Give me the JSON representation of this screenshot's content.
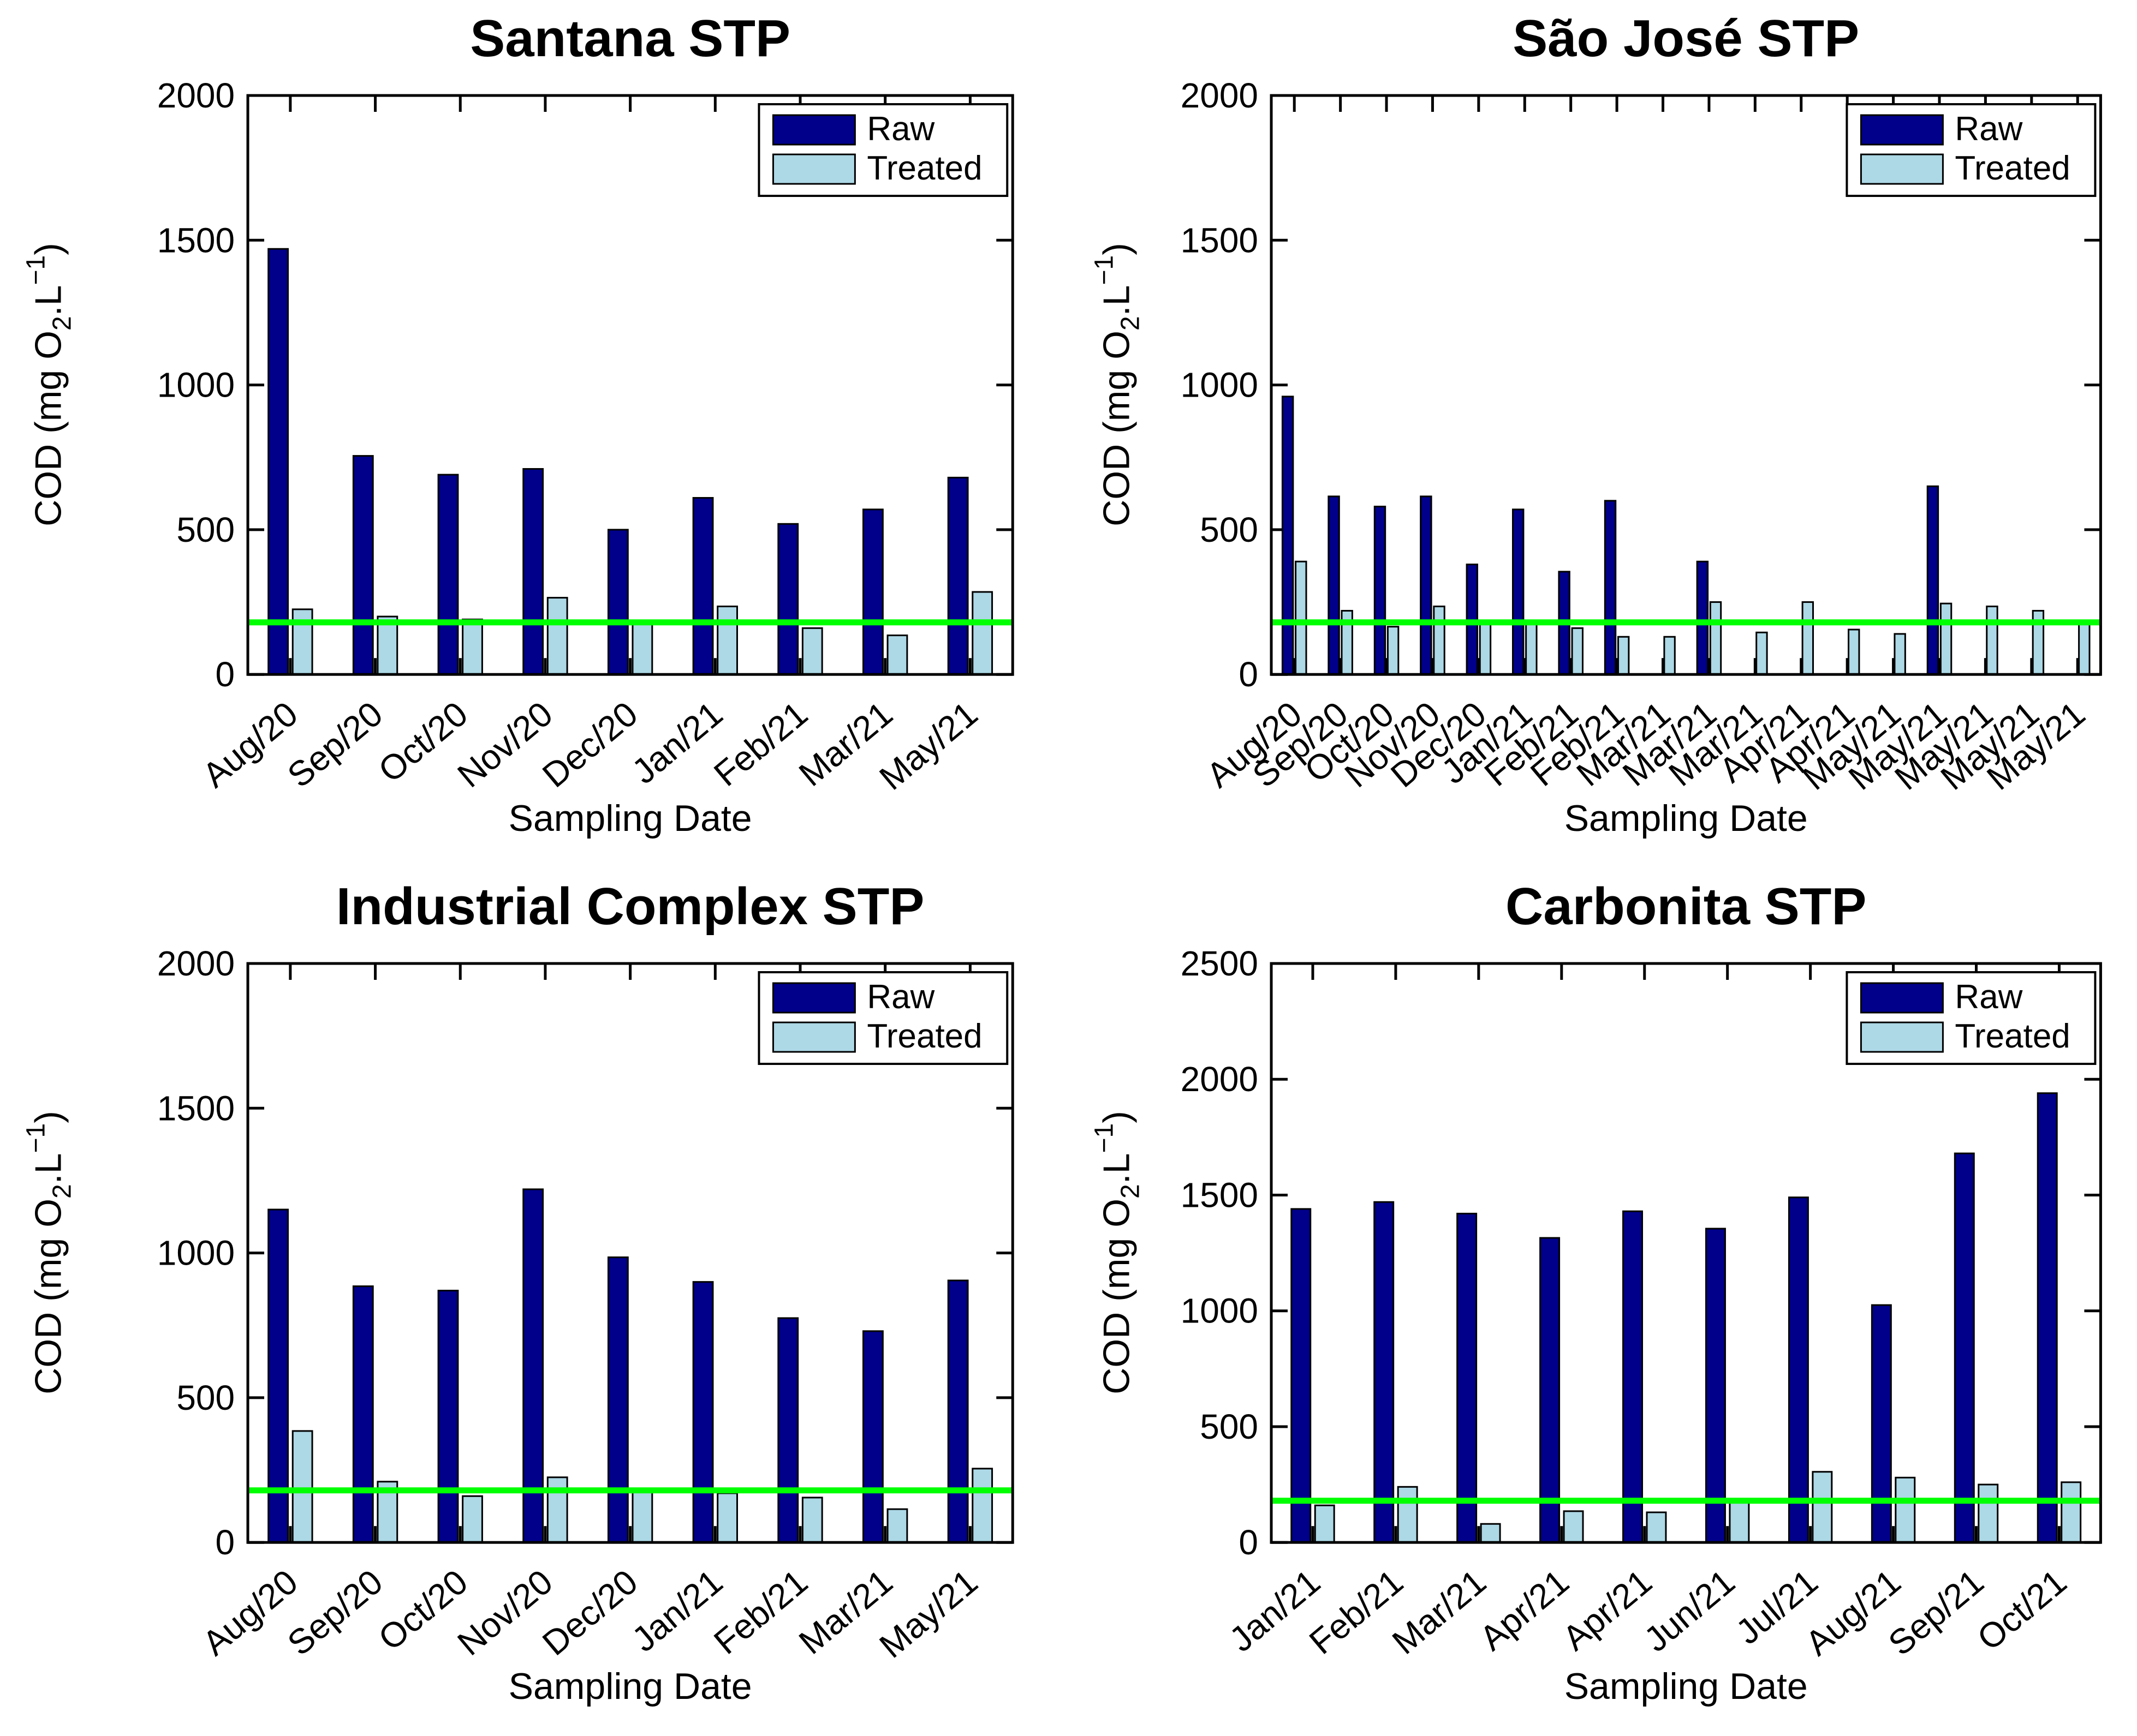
{
  "colors": {
    "raw": "#00008B",
    "treated": "#ADD8E6",
    "limit_line": "#00FF00",
    "axis": "#000000",
    "bar_edge": "#000000",
    "background": "#FFFFFF"
  },
  "legend": {
    "raw_label": "Raw",
    "treated_label": "Treated"
  },
  "axis_labels": {
    "xlabel": "Sampling Date",
    "ylabel_pre": "COD (mg O",
    "ylabel_sub": "2",
    "ylabel_mid": ".L",
    "ylabel_sup": "−1",
    "ylabel_post": ")"
  },
  "chart_data": [
    {
      "type": "bar",
      "title": "Santana STP",
      "xlabel": "Sampling Date",
      "ylabel": "COD (mg O2.L-1)",
      "ylim": [
        0,
        2000
      ],
      "yticks": [
        0,
        500,
        1000,
        1500,
        2000
      ],
      "limit_line": 180,
      "grid": false,
      "legend_position": "top-right",
      "categories": [
        "Aug/20",
        "Sep/20",
        "Oct/20",
        "Nov/20",
        "Dec/20",
        "Jan/21",
        "Feb/21",
        "Mar/21",
        "May/21"
      ],
      "series": [
        {
          "name": "Raw",
          "values": [
            1470,
            755,
            690,
            710,
            500,
            610,
            520,
            570,
            680
          ]
        },
        {
          "name": "Treated",
          "values": [
            225,
            200,
            190,
            265,
            180,
            235,
            160,
            135,
            285
          ]
        }
      ]
    },
    {
      "type": "bar",
      "title": "São José STP",
      "xlabel": "Sampling Date",
      "ylabel": "COD (mg O2.L-1)",
      "ylim": [
        0,
        2000
      ],
      "yticks": [
        0,
        500,
        1000,
        1500,
        2000
      ],
      "limit_line": 180,
      "grid": false,
      "legend_position": "top-right",
      "categories": [
        "Aug/20",
        "Sep/20",
        "Oct/20",
        "Nov/20",
        "Dec/20",
        "Jan/21",
        "Feb/21",
        "Feb/21",
        "Mar/21",
        "Mar/21",
        "Mar/21",
        "Apr/21",
        "Apr/21",
        "May/21",
        "May/21",
        "May/21",
        "May/21",
        "May/21"
      ],
      "series": [
        {
          "name": "Raw",
          "values": [
            960,
            615,
            580,
            615,
            380,
            570,
            355,
            600,
            0,
            390,
            0,
            0,
            0,
            0,
            650,
            0,
            0,
            0
          ]
        },
        {
          "name": "Treated",
          "values": [
            390,
            220,
            165,
            235,
            185,
            180,
            160,
            130,
            130,
            250,
            145,
            250,
            155,
            140,
            245,
            235,
            220,
            180
          ]
        }
      ]
    },
    {
      "type": "bar",
      "title": "Industrial Complex STP",
      "xlabel": "Sampling Date",
      "ylabel": "COD (mg O2.L-1)",
      "ylim": [
        0,
        2000
      ],
      "yticks": [
        0,
        500,
        1000,
        1500,
        2000
      ],
      "limit_line": 180,
      "grid": false,
      "legend_position": "top-right",
      "categories": [
        "Aug/20",
        "Sep/20",
        "Oct/20",
        "Nov/20",
        "Dec/20",
        "Jan/21",
        "Feb/21",
        "Mar/21",
        "May/21"
      ],
      "series": [
        {
          "name": "Raw",
          "values": [
            1150,
            885,
            870,
            1220,
            985,
            900,
            775,
            730,
            905
          ]
        },
        {
          "name": "Treated",
          "values": [
            385,
            210,
            160,
            225,
            175,
            170,
            155,
            115,
            255
          ]
        }
      ]
    },
    {
      "type": "bar",
      "title": "Carbonita STP",
      "xlabel": "Sampling Date",
      "ylabel": "COD (mg O2.L-1)",
      "ylim": [
        0,
        2500
      ],
      "yticks": [
        0,
        500,
        1000,
        1500,
        2000,
        2500
      ],
      "limit_line": 180,
      "grid": false,
      "legend_position": "top-right",
      "categories": [
        "Jan/21",
        "Feb/21",
        "Mar/21",
        "Apr/21",
        "Apr/21",
        "Jun/21",
        "Jul/21",
        "Aug/21",
        "Sep/21",
        "Oct/21"
      ],
      "series": [
        {
          "name": "Raw",
          "values": [
            1440,
            1470,
            1420,
            1315,
            1430,
            1355,
            1490,
            1025,
            1680,
            1940
          ]
        },
        {
          "name": "Treated",
          "values": [
            160,
            240,
            80,
            135,
            130,
            175,
            305,
            280,
            250,
            260
          ]
        }
      ]
    }
  ]
}
